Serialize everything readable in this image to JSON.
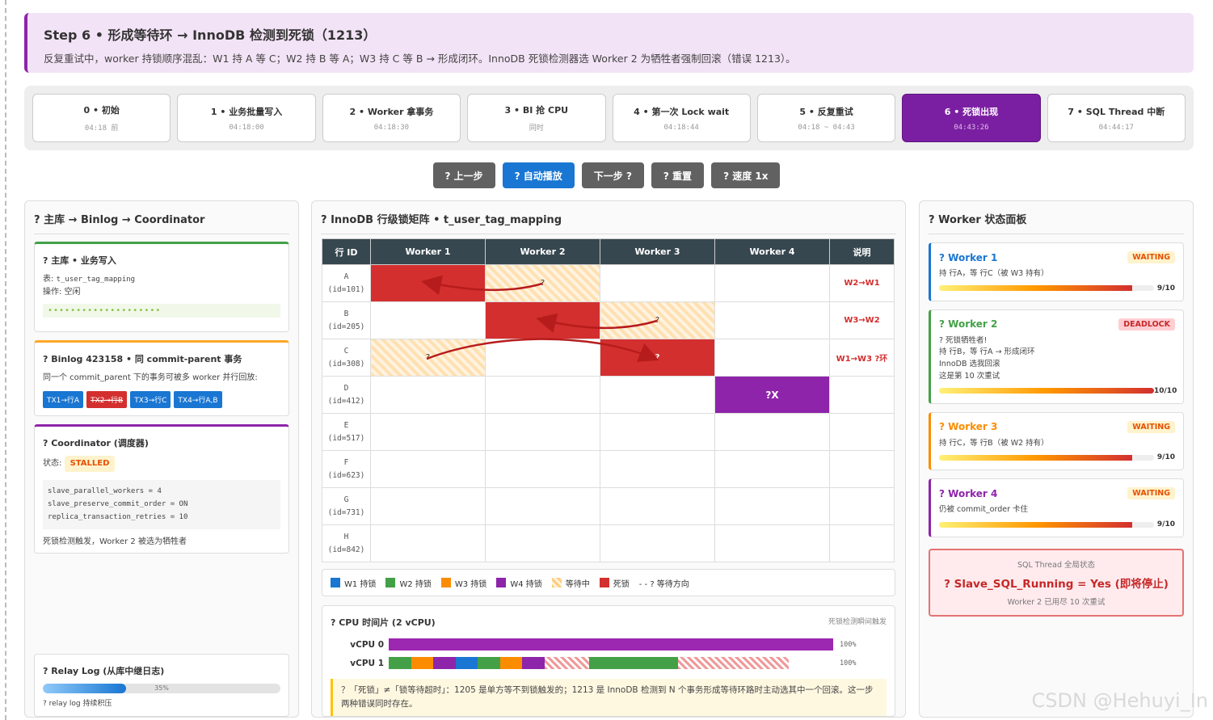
{
  "step": {
    "title": "Step 6 • 形成等待环 → InnoDB 检测到死锁（1213）",
    "desc": "反复重试中，worker 持锁顺序混乱：W1 持 A 等 C；W2 持 B 等 A；W3 持 C 等 B → 形成闭环。InnoDB 死锁检测器选 Worker 2 为牺牲者强制回滚（错误 1213）。"
  },
  "timeline": [
    {
      "label": "0 • 初始",
      "time": "04:18 前"
    },
    {
      "label": "1 • 业务批量写入",
      "time": "04:18:00"
    },
    {
      "label": "2 • Worker 拿事务",
      "time": "04:18:30"
    },
    {
      "label": "3 • BI 抢 CPU",
      "time": "同时"
    },
    {
      "label": "4 • 第一次 Lock wait",
      "time": "04:18:44"
    },
    {
      "label": "5 • 反复重试",
      "time": "04:18 ~ 04:43"
    },
    {
      "label": "6 • 死锁出现",
      "time": "04:43:26"
    },
    {
      "label": "7 • SQL Thread 中断",
      "time": "04:44:17"
    }
  ],
  "controls": {
    "prev": "? 上一步",
    "auto": "? 自动播放",
    "next": "下一步 ?",
    "reset": "? 重置",
    "speed": "? 速度 1x"
  },
  "left": {
    "title": "? 主库 → Binlog → Coordinator",
    "master": {
      "title": "? 主库 • 业务写入",
      "table_prefix": "表: ",
      "table_name": "t_user_tag_mapping",
      "op": "操作: 空闲",
      "dots": "••••••••••••••••••••"
    },
    "binlog": {
      "title": "? Binlog 423158 • 同 commit-parent 事务",
      "desc": "同一个 commit_parent 下的事务可被多 worker 并行回放:",
      "txs": [
        "TX1→行A",
        "TX2→行B",
        "TX3→行C",
        "TX4→行A,B"
      ]
    },
    "coord": {
      "title": "? Coordinator (调度器)",
      "status_label": "状态:",
      "status": "STALLED",
      "code": [
        "slave_parallel_workers = 4",
        "slave_preserve_commit_order = ON",
        "replica_transaction_retries = 10"
      ],
      "note": "死锁检测触发，Worker 2 被选为牺牲者"
    },
    "relay": {
      "title": "? Relay Log (从库中继日志)",
      "percent": "35%",
      "progress": 0.35,
      "note": "? relay log 持续积压"
    }
  },
  "matrix": {
    "title": "? InnoDB 行级锁矩阵 • t_user_tag_mapping",
    "headers": [
      "行 ID",
      "Worker 1",
      "Worker 2",
      "Worker 3",
      "Worker 4",
      "说明"
    ],
    "rows": [
      {
        "name": "A",
        "id": "(id=101)",
        "cells": [
          "red",
          "wait",
          "",
          ""
        ],
        "marks": [
          "?",
          "?",
          "",
          ""
        ],
        "note": "W2→W1"
      },
      {
        "name": "B",
        "id": "(id=205)",
        "cells": [
          "",
          "red",
          "wait",
          ""
        ],
        "marks": [
          "",
          "?",
          "?",
          ""
        ],
        "note": "W3→W2"
      },
      {
        "name": "C",
        "id": "(id=308)",
        "cells": [
          "wait",
          "",
          "red",
          ""
        ],
        "marks": [
          "?",
          "",
          "?",
          ""
        ],
        "note": "W1→W3 ?环"
      },
      {
        "name": "D",
        "id": "(id=412)",
        "cells": [
          "",
          "",
          "",
          "purple"
        ],
        "marks": [
          "",
          "",
          "",
          "?X"
        ],
        "note": ""
      },
      {
        "name": "E",
        "id": "(id=517)",
        "cells": [
          "",
          "",
          "",
          ""
        ],
        "marks": [
          "",
          "",
          "",
          ""
        ],
        "note": ""
      },
      {
        "name": "F",
        "id": "(id=623)",
        "cells": [
          "",
          "",
          "",
          ""
        ],
        "marks": [
          "",
          "",
          "",
          ""
        ],
        "note": ""
      },
      {
        "name": "G",
        "id": "(id=731)",
        "cells": [
          "",
          "",
          "",
          ""
        ],
        "marks": [
          "",
          "",
          "",
          ""
        ],
        "note": ""
      },
      {
        "name": "H",
        "id": "(id=842)",
        "cells": [
          "",
          "",
          "",
          ""
        ],
        "marks": [
          "",
          "",
          "",
          ""
        ],
        "note": ""
      }
    ]
  },
  "legend": [
    {
      "label": "W1 持锁",
      "color": "#1976d2"
    },
    {
      "label": "W2 持锁",
      "color": "#43a047"
    },
    {
      "label": "W3 持锁",
      "color": "#fb8c00"
    },
    {
      "label": "W4 持锁",
      "color": "#8e24aa"
    },
    {
      "label": "等待中",
      "color": "#ffcc80"
    },
    {
      "label": "死锁",
      "color": "#d32f2f"
    },
    {
      "label": "- - ? 等待方向",
      "color": ""
    }
  ],
  "cpu": {
    "title": "? CPU 时间片 (2 vCPU)",
    "hint": "死锁检测瞬间触发",
    "rows": [
      {
        "label": "vCPU 0",
        "pct": "100%"
      },
      {
        "label": "vCPU 1",
        "pct": "100%"
      }
    ],
    "tip": "？「死锁」≠「锁等待超时」：1205 是单方等不到锁触发的；1213 是 InnoDB 检测到 N 个事务形成等待环路时主动选其中一个回滚。这一步两种错误同时存在。"
  },
  "workers": {
    "title": "? Worker 状态面板",
    "items": [
      {
        "name": "? Worker 1",
        "status": "WAITING",
        "kind": "waiting",
        "color": "#1976d2",
        "desc": [
          "持 行A，等 行C（被 W3 持有）"
        ],
        "count": "9/10",
        "fill": 0.9
      },
      {
        "name": "? Worker 2",
        "status": "DEADLOCK",
        "kind": "deadlock",
        "color": "#43a047",
        "desc": [
          "? 死锁牺牲者!",
          "持 行B，等 行A → 形成闭环",
          "InnoDB 选我回滚",
          "这是第 10 次重试"
        ],
        "count": "10/10",
        "fill": 1.0
      },
      {
        "name": "? Worker 3",
        "status": "WAITING",
        "kind": "waiting",
        "color": "#fb8c00",
        "desc": [
          "持 行C，等 行B（被 W2 持有）"
        ],
        "count": "9/10",
        "fill": 0.9
      },
      {
        "name": "? Worker 4",
        "status": "WAITING",
        "kind": "waiting",
        "color": "#8e24aa",
        "desc": [
          "仍被 commit_order 卡住"
        ],
        "count": "9/10",
        "fill": 0.9
      }
    ],
    "sql": {
      "label": "SQL Thread 全局状态",
      "main": "? Slave_SQL_Running = Yes (即将停止)",
      "sub": "Worker 2 已用尽 10 次重试"
    }
  },
  "watermark": "CSDN @Hehuyi_In"
}
